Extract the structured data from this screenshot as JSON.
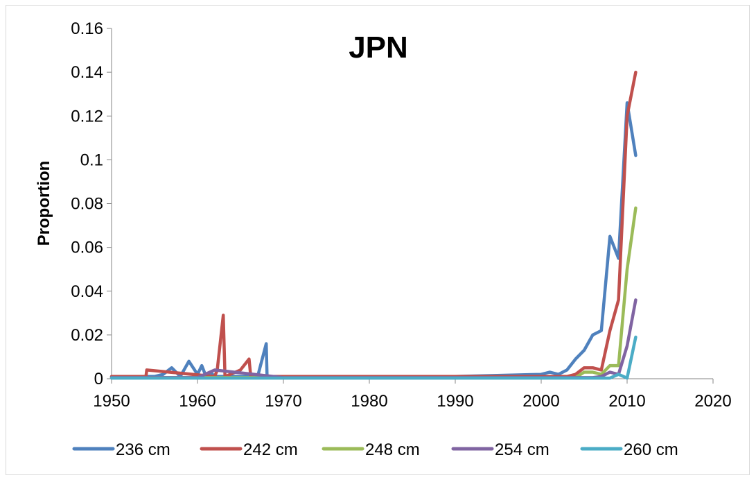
{
  "chart_data": {
    "type": "line",
    "title": "JPN",
    "xlabel": "",
    "ylabel": "Proportion",
    "xlim": [
      1950,
      2020
    ],
    "ylim": [
      0,
      0.16
    ],
    "x_ticks": [
      "1950",
      "1960",
      "1970",
      "1980",
      "1990",
      "2000",
      "2010",
      "2020"
    ],
    "y_ticks": [
      "0",
      "0.02",
      "0.04",
      "0.06",
      "0.08",
      "0.1",
      "0.12",
      "0.14",
      "0.16"
    ],
    "grid": false,
    "legend_position": "bottom",
    "series": [
      {
        "name": "236 cm",
        "color": "#4F81BD",
        "x": [
          1950,
          1955,
          1956,
          1957,
          1958,
          1959,
          1960,
          1960.5,
          1961,
          1961.5,
          1962,
          1963,
          1964,
          1965,
          1966,
          1967,
          1968,
          1968.1,
          1970,
          1980,
          1990,
          2000,
          2001,
          2002,
          2003,
          2004,
          2005,
          2006,
          2007,
          2008,
          2009,
          2010,
          2011
        ],
        "y": [
          0.001,
          0.001,
          0.002,
          0.005,
          0.001,
          0.008,
          0.002,
          0.006,
          0.001,
          0.003,
          0.001,
          0.001,
          0.001,
          0.001,
          0.001,
          0.001,
          0.016,
          0.001,
          0.001,
          0.001,
          0.001,
          0.002,
          0.003,
          0.002,
          0.004,
          0.009,
          0.013,
          0.02,
          0.022,
          0.065,
          0.055,
          0.126,
          0.102
        ]
      },
      {
        "name": "242 cm",
        "color": "#C0504D",
        "x": [
          1950,
          1954,
          1954.1,
          1962,
          1962.3,
          1963,
          1963.2,
          1965,
          1966,
          1966.2,
          1970,
          1980,
          1990,
          2000,
          2002,
          2003,
          2004,
          2005,
          2006,
          2007,
          2008,
          2009,
          2010,
          2011
        ],
        "y": [
          0.001,
          0.001,
          0.004,
          0.001,
          0.004,
          0.029,
          0.001,
          0.004,
          0.009,
          0.001,
          0.001,
          0.001,
          0.001,
          0.001,
          0.001,
          0.001,
          0.002,
          0.005,
          0.005,
          0.004,
          0.022,
          0.036,
          0.12,
          0.14
        ]
      },
      {
        "name": "248 cm",
        "color": "#9BBB59",
        "x": [
          1950,
          1960,
          1970,
          1980,
          1990,
          2000,
          2004,
          2005,
          2006,
          2007,
          2008,
          2009,
          2010,
          2011
        ],
        "y": [
          0.0005,
          0.0005,
          0.0005,
          0.0005,
          0.0005,
          0.0005,
          0.0005,
          0.003,
          0.003,
          0.002,
          0.006,
          0.006,
          0.05,
          0.078
        ]
      },
      {
        "name": "254 cm",
        "color": "#8064A2",
        "x": [
          1950,
          1960,
          1962,
          1970,
          1980,
          1990,
          2000,
          2006,
          2007,
          2008,
          2009,
          2010,
          2011
        ],
        "y": [
          0.0005,
          0.0005,
          0.004,
          0.0005,
          0.0005,
          0.0005,
          0.0005,
          0.0005,
          0.001,
          0.003,
          0.002,
          0.015,
          0.036
        ]
      },
      {
        "name": "260 cm",
        "color": "#4BACC6",
        "x": [
          1950,
          1960,
          1970,
          1980,
          1990,
          2000,
          2008,
          2009,
          2010,
          2011
        ],
        "y": [
          0.0003,
          0.0003,
          0.0003,
          0.0003,
          0.0003,
          0.0003,
          0.0003,
          0.002,
          0.0003,
          0.019
        ]
      }
    ]
  }
}
